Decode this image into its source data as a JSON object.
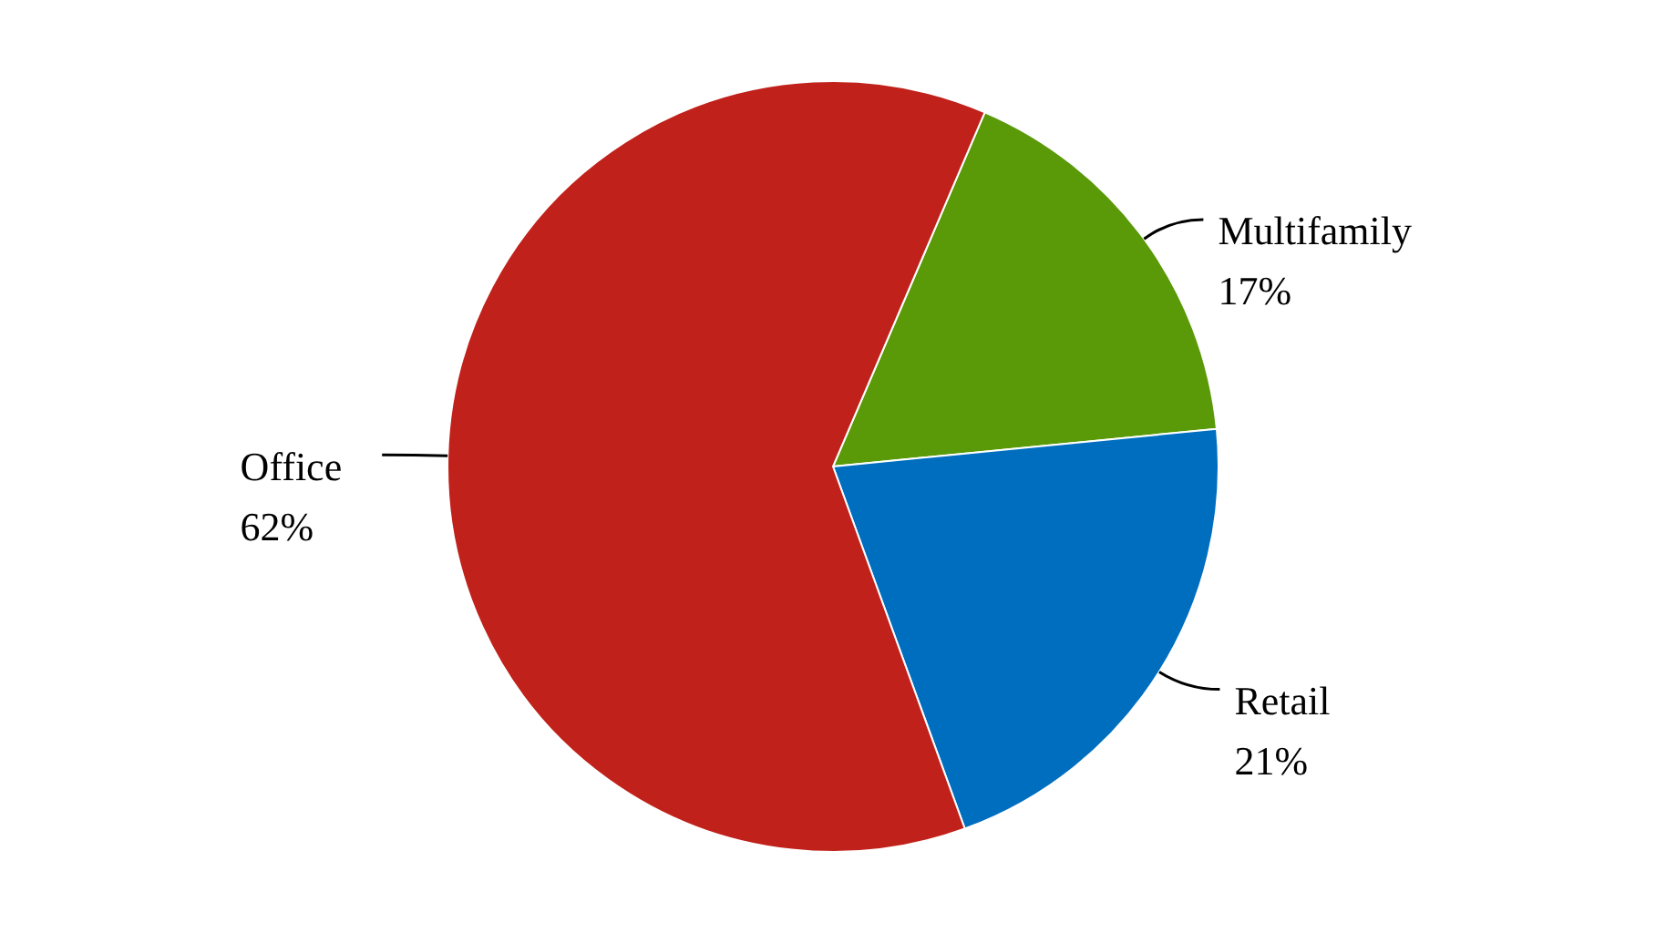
{
  "chart_data": {
    "type": "pie",
    "categories": [
      "Multifamily",
      "Retail",
      "Office"
    ],
    "values": [
      17,
      21,
      62
    ],
    "colors": [
      "#5a9a08",
      "#006ebf",
      "#c0211a"
    ],
    "value_labels": [
      "17%",
      "21%",
      "62%"
    ],
    "legend": false
  }
}
